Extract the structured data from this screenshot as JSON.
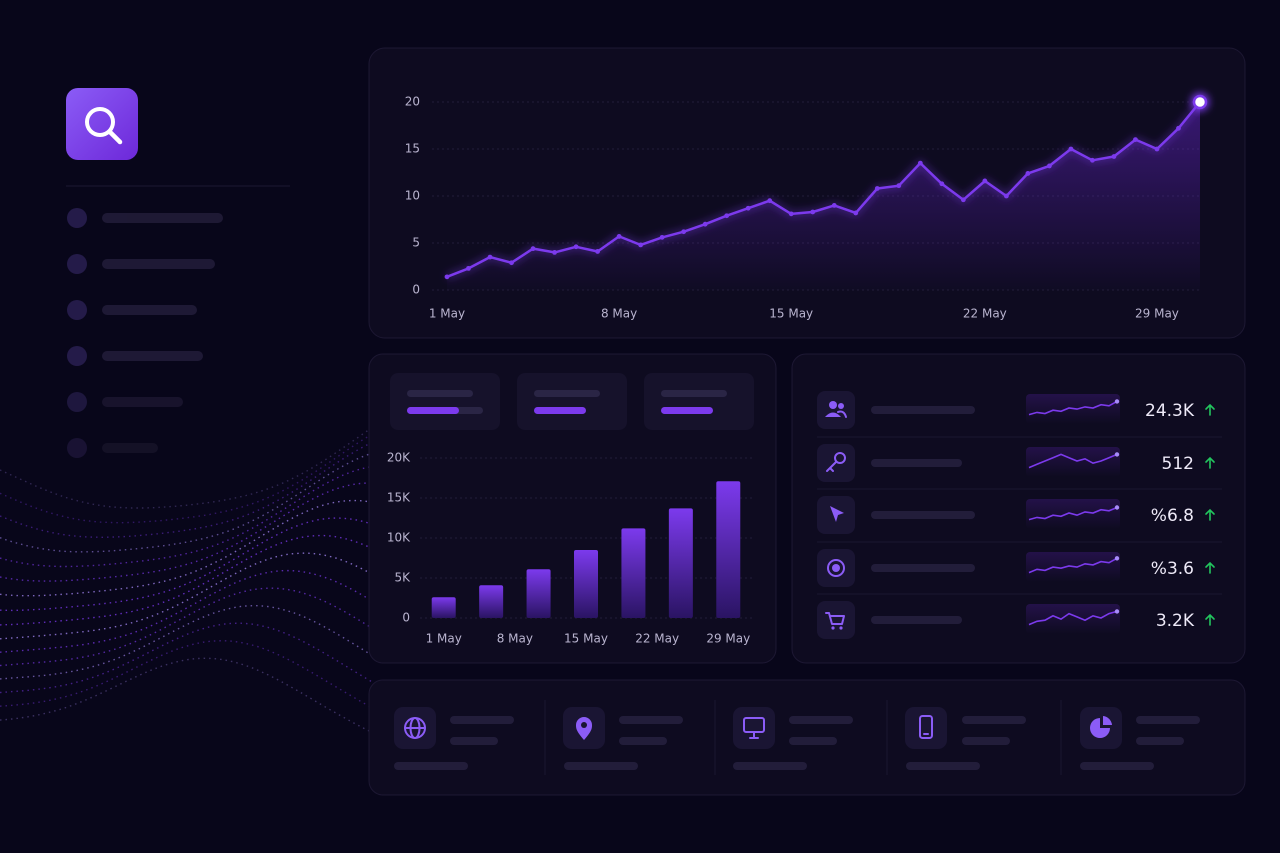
{
  "chart_data": [
    {
      "type": "line",
      "categories": [
        "1 May",
        null,
        null,
        null,
        null,
        null,
        null,
        null,
        "8 May",
        null,
        null,
        null,
        null,
        null,
        null,
        null,
        "15 May",
        null,
        null,
        null,
        null,
        null,
        null,
        null,
        null,
        "22 May",
        null,
        null,
        null,
        null,
        null,
        null,
        null,
        "29 May",
        null,
        null
      ],
      "series": [
        {
          "color": "#7c3aed",
          "values": [
            1.4,
            2.3,
            3.5,
            2.9,
            4.4,
            4.0,
            4.6,
            4.1,
            5.7,
            4.8,
            5.6,
            6.2,
            7.0,
            7.9,
            8.7,
            9.5,
            8.1,
            8.3,
            9.0,
            8.2,
            10.8,
            11.1,
            13.5,
            11.3,
            9.6,
            11.6,
            10.0,
            12.4,
            13.2,
            15.0,
            13.8,
            14.2,
            16.0,
            15.0,
            17.2,
            20.0
          ]
        }
      ],
      "ylim": [
        0,
        20
      ],
      "yticks": [
        0,
        5,
        10,
        15,
        20
      ],
      "grid": true
    },
    {
      "type": "bar",
      "categories": [
        null,
        null,
        null,
        null,
        null,
        null,
        null
      ],
      "xlabels": [
        "1 May",
        "8 May",
        "15 May",
        "22 May",
        "29 May"
      ],
      "values": [
        2600,
        4100,
        6100,
        8500,
        11200,
        13700,
        17100
      ],
      "color": "#7c3aed",
      "ylim": [
        0,
        20000
      ],
      "yticks": [
        0,
        {
          "value": 5000,
          "label": "5K"
        },
        {
          "value": 10000,
          "label": "10K"
        },
        {
          "value": 15000,
          "label": "15K"
        },
        {
          "value": 20000,
          "label": "20K"
        }
      ],
      "grid": true
    }
  ],
  "metrics": [
    {
      "value": "24.3K",
      "sparkline": [
        2,
        3,
        2.5,
        4,
        3.5,
        5,
        4.5,
        5.5,
        5,
        6.5,
        6,
        8
      ]
    },
    {
      "value": "512",
      "sparkline": [
        2,
        3.5,
        5,
        6.5,
        8,
        6.5,
        5,
        6,
        4,
        5,
        6.5,
        8
      ]
    },
    {
      "value": "%6.8",
      "sparkline": [
        2,
        3,
        2.5,
        4,
        3.5,
        5,
        4,
        5.5,
        5,
        6.5,
        6,
        7.5
      ]
    },
    {
      "value": "%3.6",
      "sparkline": [
        2,
        3.5,
        3,
        4.5,
        4,
        5,
        4.5,
        6,
        5.5,
        7,
        6.5,
        8.5
      ]
    },
    {
      "value": "3.2K",
      "sparkline": [
        2,
        3.5,
        4,
        6,
        4.5,
        7,
        5.5,
        4,
        6,
        5,
        7,
        8
      ]
    }
  ],
  "sparkline_ylim": [
    0,
    10
  ]
}
